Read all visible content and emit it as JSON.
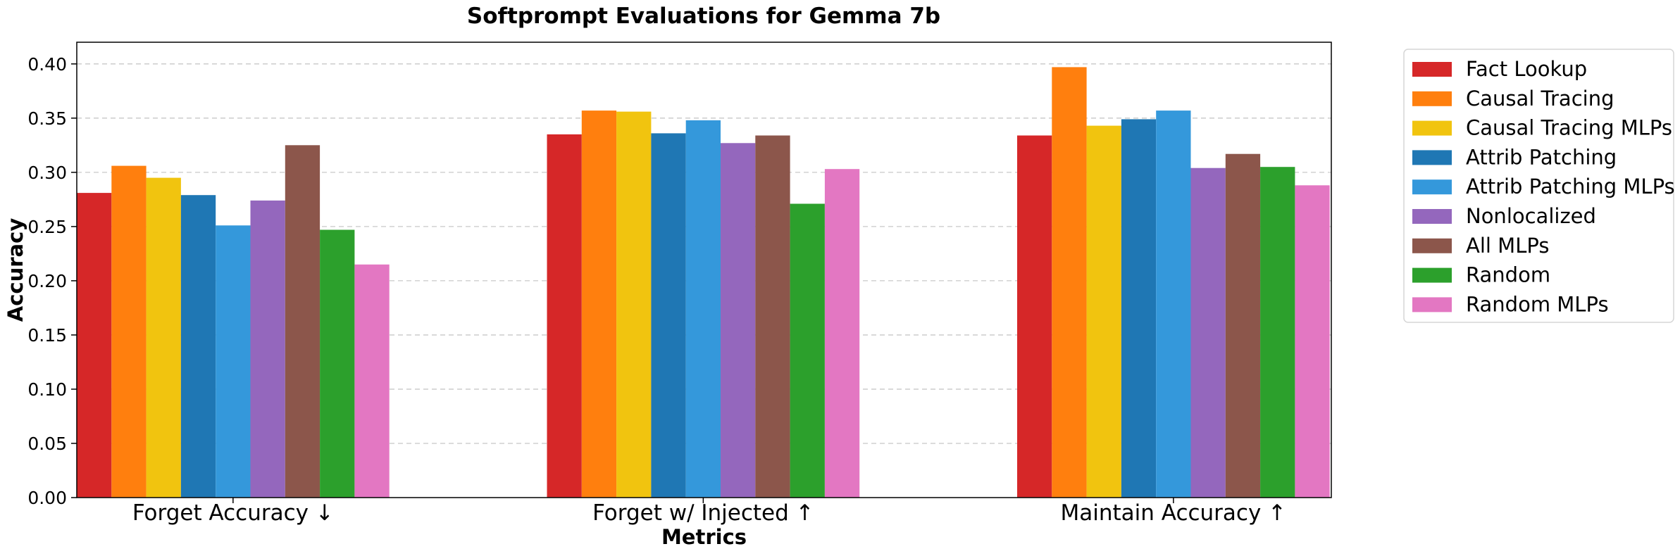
{
  "chart_data": {
    "type": "bar",
    "title": "Softprompt Evaluations for Gemma 7b",
    "xlabel": "Metrics",
    "ylabel": "Accuracy",
    "ylim": [
      0,
      0.42
    ],
    "yticks": [
      "0.00",
      "0.05",
      "0.10",
      "0.15",
      "0.20",
      "0.25",
      "0.30",
      "0.35",
      "0.40"
    ],
    "grid": "y-dashed",
    "legend_position": "outside-right",
    "categories": [
      "Forget Accuracy ↓",
      "Forget w/ Injected ↑",
      "Maintain Accuracy ↑"
    ],
    "series": [
      {
        "name": "Fact Lookup",
        "color": "#d62728",
        "values": [
          0.281,
          0.335,
          0.334
        ]
      },
      {
        "name": "Causal Tracing",
        "color": "#ff7f0e",
        "values": [
          0.306,
          0.357,
          0.397
        ]
      },
      {
        "name": "Causal Tracing MLPs",
        "color": "#f1c40f",
        "values": [
          0.295,
          0.356,
          0.343
        ]
      },
      {
        "name": "Attrib Patching",
        "color": "#1f77b4",
        "values": [
          0.279,
          0.336,
          0.349
        ]
      },
      {
        "name": "Attrib Patching MLPs",
        "color": "#3498db",
        "values": [
          0.251,
          0.348,
          0.357
        ]
      },
      {
        "name": "Nonlocalized",
        "color": "#9467bd",
        "values": [
          0.274,
          0.327,
          0.304
        ]
      },
      {
        "name": "All MLPs",
        "color": "#8c564b",
        "values": [
          0.325,
          0.334,
          0.317
        ]
      },
      {
        "name": "Random",
        "color": "#2ca02c",
        "values": [
          0.247,
          0.271,
          0.305
        ]
      },
      {
        "name": "Random MLPs",
        "color": "#e377c2",
        "values": [
          0.215,
          0.303,
          0.288
        ]
      }
    ]
  }
}
